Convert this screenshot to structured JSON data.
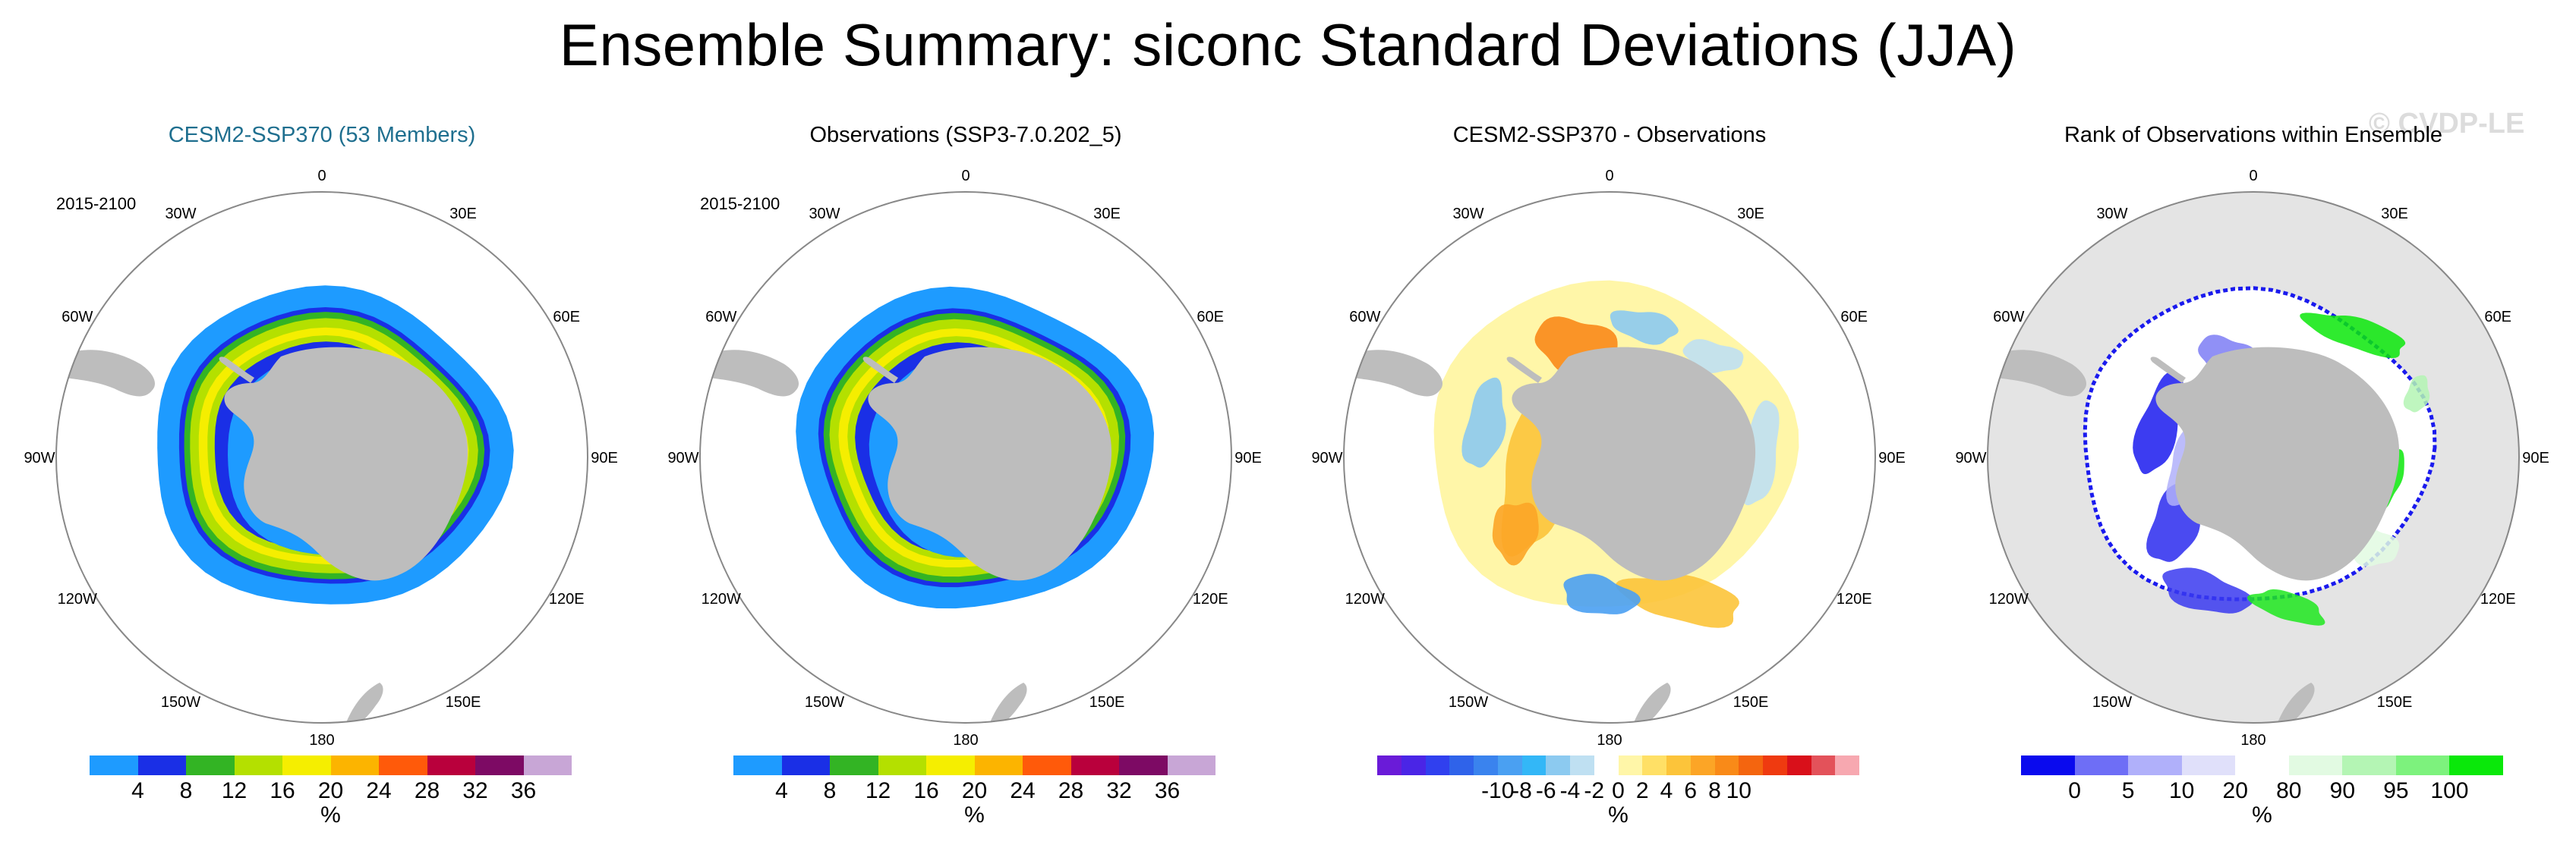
{
  "title": "Ensemble Summary: siconc Standard Deviations (JJA)",
  "watermark": "© CVDP-LE",
  "lon_labels": [
    "0",
    "30E",
    "60E",
    "90E",
    "120E",
    "150E",
    "180",
    "150W",
    "120W",
    "90W",
    "60W",
    "30W"
  ],
  "colors": {
    "land": "#bdbdbd",
    "ocean_rank_bg": "#e4e4e4",
    "circle": "#888888"
  },
  "panels": [
    {
      "title": "CESM2-SSP370 (53 Members)",
      "period": "2015-2100",
      "style": "model",
      "colorbar": {
        "colors": [
          "#1e9bff",
          "#1a2fe6",
          "#33b424",
          "#b4e000",
          "#f5ee00",
          "#fcb400",
          "#ff5a0a",
          "#b9003c",
          "#7d0a64",
          "#c8a6d6"
        ],
        "labels": [
          "4",
          "8",
          "12",
          "16",
          "20",
          "24",
          "28",
          "32",
          "36"
        ],
        "label_positions": "boundaries",
        "unit": "%"
      }
    },
    {
      "title": "Observations (SSP3-7.0.202_5)",
      "period": "2015-2100",
      "style": "obs",
      "colorbar": {
        "colors": [
          "#1e9bff",
          "#1a2fe6",
          "#33b424",
          "#b4e000",
          "#f5ee00",
          "#fcb400",
          "#ff5a0a",
          "#b9003c",
          "#7d0a64",
          "#c8a6d6"
        ],
        "labels": [
          "4",
          "8",
          "12",
          "16",
          "20",
          "24",
          "28",
          "32",
          "36"
        ],
        "label_positions": "boundaries",
        "unit": "%"
      }
    },
    {
      "title": "CESM2-SSP370 - Observations",
      "period": "",
      "style": "diff",
      "colorbar": {
        "colors": [
          "#6a1bd8",
          "#4a25e6",
          "#3040ef",
          "#2f63ea",
          "#3a83ee",
          "#4aa0f2",
          "#33b7f7",
          "#8ccaf0",
          "#bfe0f2",
          "#ffffff",
          "#fff6a8",
          "#ffe066",
          "#fcc43a",
          "#fca526",
          "#f98a18",
          "#f4650f",
          "#ef3a10",
          "#d9101a",
          "#e3525a",
          "#f7a8b0"
        ],
        "labels": [
          "-10",
          "-8",
          "-6",
          "-4",
          "-2",
          "0",
          "2",
          "4",
          "6",
          "8",
          "10"
        ],
        "label_positions": "boundaries",
        "unit": "%"
      }
    },
    {
      "title": "Rank of Observations within Ensemble",
      "period": "",
      "style": "rank",
      "colorbar": {
        "colors": [
          "#0a0aee",
          "#6e6ef6",
          "#b0b0fa",
          "#e0e0fa",
          "#ffffff",
          "#e2fae2",
          "#b4f5b4",
          "#7df27d",
          "#0ae80a"
        ],
        "labels": [
          "0",
          "5",
          "10",
          "20",
          "80",
          "90",
          "95",
          "100"
        ],
        "label_positions": "boundaries",
        "unit": "%"
      }
    }
  ]
}
